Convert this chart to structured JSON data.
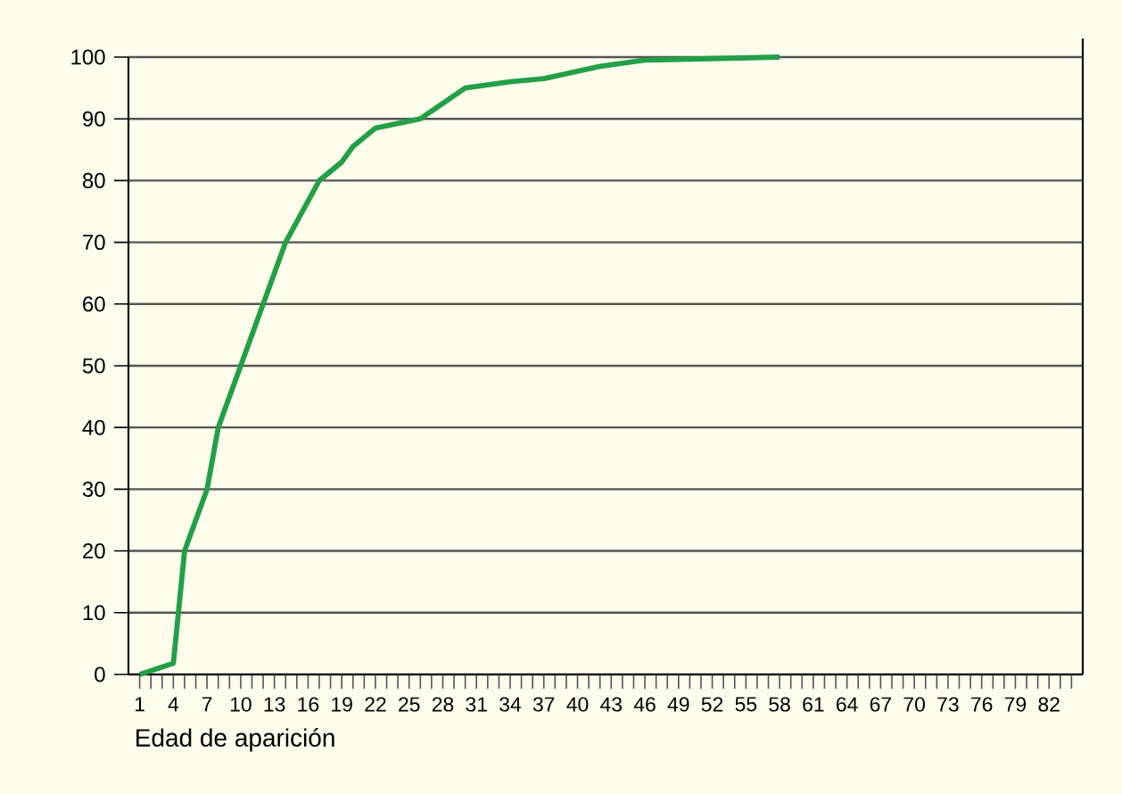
{
  "chart_data": {
    "type": "line",
    "xlabel": "Edad de aparición",
    "x": [
      1,
      4,
      5,
      7,
      8,
      10,
      12,
      14,
      17,
      19,
      20,
      22,
      26,
      30,
      34,
      37,
      42,
      46,
      58
    ],
    "series": [
      {
        "color": "#23a047",
        "values": [
          0,
          1.8,
          20,
          30,
          40,
          50,
          60,
          70,
          80,
          83,
          85.5,
          88.5,
          90,
          95,
          96,
          96.5,
          98.5,
          99.5,
          100
        ]
      }
    ],
    "xlim": [
      0,
      85
    ],
    "ylim": [
      0,
      100
    ],
    "yticks": [
      0,
      10,
      20,
      30,
      40,
      50,
      60,
      70,
      80,
      90,
      100
    ],
    "xticks": [
      1,
      {
        "value": 2,
        "label": null
      },
      {
        "value": 3,
        "label": null
      },
      4,
      {
        "value": 5,
        "label": null
      },
      {
        "value": 6,
        "label": null
      },
      7,
      {
        "value": 8,
        "label": null
      },
      {
        "value": 9,
        "label": null
      },
      10,
      {
        "value": 11,
        "label": null
      },
      {
        "value": 12,
        "label": null
      },
      13,
      {
        "value": 14,
        "label": null
      },
      {
        "value": 15,
        "label": null
      },
      16,
      {
        "value": 17,
        "label": null
      },
      {
        "value": 18,
        "label": null
      },
      19,
      {
        "value": 20,
        "label": null
      },
      {
        "value": 21,
        "label": null
      },
      22,
      {
        "value": 23,
        "label": null
      },
      {
        "value": 24,
        "label": null
      },
      25,
      {
        "value": 26,
        "label": null
      },
      {
        "value": 27,
        "label": null
      },
      28,
      {
        "value": 29,
        "label": null
      },
      {
        "value": 30,
        "label": null
      },
      31,
      {
        "value": 32,
        "label": null
      },
      {
        "value": 33,
        "label": null
      },
      34,
      {
        "value": 35,
        "label": null
      },
      {
        "value": 36,
        "label": null
      },
      37,
      {
        "value": 38,
        "label": null
      },
      {
        "value": 39,
        "label": null
      },
      40,
      {
        "value": 41,
        "label": null
      },
      {
        "value": 42,
        "label": null
      },
      43,
      {
        "value": 44,
        "label": null
      },
      {
        "value": 45,
        "label": null
      },
      46,
      {
        "value": 47,
        "label": null
      },
      {
        "value": 48,
        "label": null
      },
      49,
      {
        "value": 50,
        "label": null
      },
      {
        "value": 51,
        "label": null
      },
      52,
      {
        "value": 53,
        "label": null
      },
      {
        "value": 54,
        "label": null
      },
      55,
      {
        "value": 56,
        "label": null
      },
      {
        "value": 57,
        "label": null
      },
      58,
      {
        "value": 59,
        "label": null
      },
      {
        "value": 60,
        "label": null
      },
      61,
      {
        "value": 62,
        "label": null
      },
      {
        "value": 63,
        "label": null
      },
      64,
      {
        "value": 65,
        "label": null
      },
      {
        "value": 66,
        "label": null
      },
      67,
      {
        "value": 68,
        "label": null
      },
      {
        "value": 69,
        "label": null
      },
      70,
      {
        "value": 71,
        "label": null
      },
      {
        "value": 72,
        "label": null
      },
      73,
      {
        "value": 74,
        "label": null
      },
      {
        "value": 75,
        "label": null
      },
      76,
      {
        "value": 77,
        "label": null
      },
      {
        "value": 78,
        "label": null
      },
      79,
      {
        "value": 80,
        "label": null
      },
      {
        "value": 81,
        "label": null
      },
      82,
      {
        "value": 83,
        "label": null
      },
      {
        "value": 84,
        "label": null
      }
    ],
    "grid": "y",
    "marker": "none",
    "line_style": "solid"
  }
}
